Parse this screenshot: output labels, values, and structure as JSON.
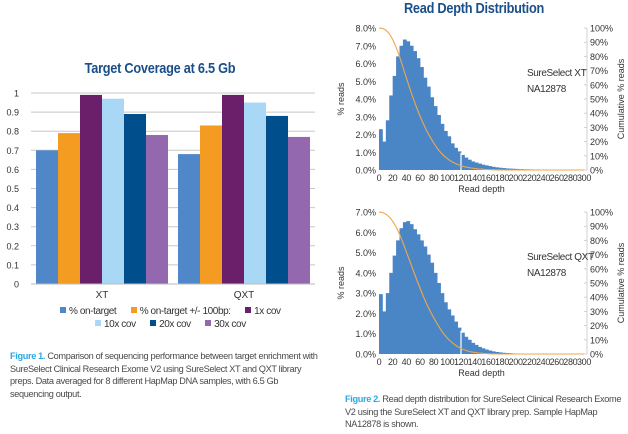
{
  "chart_data": [
    {
      "type": "bar",
      "title": "Target Coverage at 6.5 Gb",
      "xlabel": "",
      "ylabel": "",
      "ylim": [
        0,
        1
      ],
      "yticks": [
        "0",
        "0.1",
        "0.2",
        "0.3",
        "0.4",
        "0.5",
        "0.6",
        "0.7",
        "0.8",
        "0.9",
        "1"
      ],
      "grid": true,
      "legend_position": "bottom",
      "categories": [
        "XT",
        "QXT"
      ],
      "series": [
        {
          "name": "% on-target",
          "color": "#4f87c8",
          "values": [
            0.7,
            0.68
          ]
        },
        {
          "name": "% on-target +/- 100bp:",
          "color": "#f39c21",
          "values": [
            0.79,
            0.83
          ]
        },
        {
          "name": "1x cov",
          "color": "#6b1f6a",
          "values": [
            0.99,
            0.99
          ]
        },
        {
          "name": "10x cov",
          "color": "#a8d8f5",
          "values": [
            0.97,
            0.95
          ]
        },
        {
          "name": "20x cov",
          "color": "#004f8c",
          "values": [
            0.89,
            0.88
          ]
        },
        {
          "name": "30x cov",
          "color": "#9468ae",
          "values": [
            0.78,
            0.77
          ]
        }
      ]
    },
    {
      "type": "bar",
      "title": "Read Depth Distribution",
      "annotation": [
        "SureSelect XT",
        "NA12878"
      ],
      "xlabel": "Read depth",
      "ylabel": "% reads",
      "y2label": "Cumulative % reads",
      "xlim": [
        0,
        300
      ],
      "ylim": [
        0,
        8.0
      ],
      "y2lim": [
        0,
        100
      ],
      "xticks": [
        "0",
        "20",
        "40",
        "60",
        "80",
        "100",
        "120",
        "140",
        "160",
        "180",
        "200",
        "220",
        "240",
        "260",
        "280",
        "300"
      ],
      "yticks": [
        "0.0%",
        "1.0%",
        "2.0%",
        "3.0%",
        "4.0%",
        "5.0%",
        "6.0%",
        "7.0%",
        "8.0%"
      ],
      "y2ticks": [
        "0%",
        "10%",
        "20%",
        "30%",
        "40%",
        "50%",
        "60%",
        "70%",
        "80%",
        "90%",
        "100%"
      ],
      "bin_width": 5,
      "histogram_color": "#4a86c6",
      "cumulative_color": "#f0a64a",
      "marker_x": 120,
      "values": [
        2.3,
        1.6,
        2.8,
        4.2,
        5.3,
        6.4,
        7.0,
        7.35,
        7.25,
        7.0,
        6.7,
        6.3,
        5.8,
        5.2,
        4.7,
        4.1,
        3.6,
        3.1,
        2.6,
        2.2,
        1.9,
        1.5,
        1.25,
        1.05,
        0.85,
        0.7,
        0.58,
        0.48,
        0.42,
        0.36,
        0.3,
        0.26,
        0.22,
        0.18,
        0.15,
        0.13,
        0.11,
        0.09,
        0.08,
        0.07,
        0.06,
        0.05,
        0.045,
        0.04,
        0.035,
        0.03,
        0.03,
        0.025,
        0.02,
        0.02,
        0.015,
        0.015,
        0.01
      ],
      "cumulative_remaining": [
        100,
        99.8,
        98.5,
        96,
        92,
        86.5,
        80,
        72.5,
        65,
        57.5,
        50.5,
        44,
        38,
        32.5,
        27.5,
        23,
        19,
        15.5,
        12.5,
        10,
        8,
        6.3,
        5,
        3.9,
        3,
        2.3,
        1.8,
        1.4,
        1.1,
        0.8,
        0.6,
        0.45,
        0.3,
        0.2,
        0.15,
        0.1,
        0.05,
        0.02,
        0,
        0,
        0,
        0,
        0,
        0,
        0,
        0,
        0,
        0,
        0,
        0,
        0,
        0,
        0,
        0,
        0,
        0,
        0,
        0,
        0,
        0,
        0
      ]
    },
    {
      "type": "bar",
      "title": "",
      "annotation": [
        "SureSelect QXT",
        "NA12878"
      ],
      "xlabel": "Read depth",
      "ylabel": "% reads",
      "y2label": "Cumulative % reads",
      "xlim": [
        0,
        300
      ],
      "ylim": [
        0,
        7.0
      ],
      "y2lim": [
        0,
        100
      ],
      "xticks": [
        "0",
        "20",
        "40",
        "60",
        "80",
        "100",
        "120",
        "140",
        "160",
        "180",
        "200",
        "220",
        "240",
        "260",
        "280",
        "300"
      ],
      "yticks": [
        "0.0%",
        "1.0%",
        "2.0%",
        "3.0%",
        "4.0%",
        "5.0%",
        "6.0%",
        "7.0%"
      ],
      "y2ticks": [
        "0%",
        "10%",
        "20%",
        "30%",
        "40%",
        "50%",
        "60%",
        "70%",
        "80%",
        "90%",
        "100%"
      ],
      "bin_width": 5,
      "histogram_color": "#4a86c6",
      "cumulative_color": "#f0a64a",
      "marker_x": 120,
      "values": [
        2.95,
        2.1,
        3.0,
        4.0,
        4.85,
        5.6,
        6.2,
        6.5,
        6.55,
        6.4,
        6.15,
        5.9,
        5.6,
        5.3,
        4.9,
        4.5,
        4.0,
        3.5,
        3.0,
        2.55,
        2.2,
        1.9,
        1.6,
        1.3,
        1.05,
        0.85,
        0.7,
        0.55,
        0.45,
        0.35,
        0.28,
        0.22,
        0.17,
        0.13,
        0.1,
        0.08,
        0.06,
        0.05,
        0.04,
        0.03,
        0.02,
        0.015,
        0.01
      ],
      "cumulative_remaining": [
        100,
        99.7,
        98.5,
        96.5,
        93.5,
        89.5,
        84.5,
        78.5,
        72,
        65.5,
        59,
        52.5,
        46.5,
        40.5,
        35,
        30,
        25.5,
        21.5,
        17.5,
        14,
        11.2,
        8.8,
        6.8,
        5.2,
        3.9,
        2.9,
        2.1,
        1.5,
        1.1,
        0.8,
        0.55,
        0.35,
        0.2,
        0.1,
        0.05,
        0,
        0,
        0,
        0,
        0,
        0,
        0,
        0,
        0,
        0,
        0,
        0,
        0,
        0,
        0,
        0,
        0,
        0,
        0,
        0,
        0,
        0,
        0,
        0,
        0,
        0
      ]
    }
  ],
  "captions": {
    "figure1_label": "Figure 1.",
    "figure1_text": " Comparison of sequencing performance between target enrichment with SureSelect Clinical Research Exome V2 using SureSelect XT and QXT library preps. Data averaged for 8 different HapMap DNA samples, with 6.5 Gb sequencing output.",
    "figure2_label": "Figure 2.",
    "figure2_text": " Read depth distribution for SureSelect Clinical Research Exome V2 using the SureSelect XT and QXT library prep. Sample HapMap NA12878 is shown."
  }
}
